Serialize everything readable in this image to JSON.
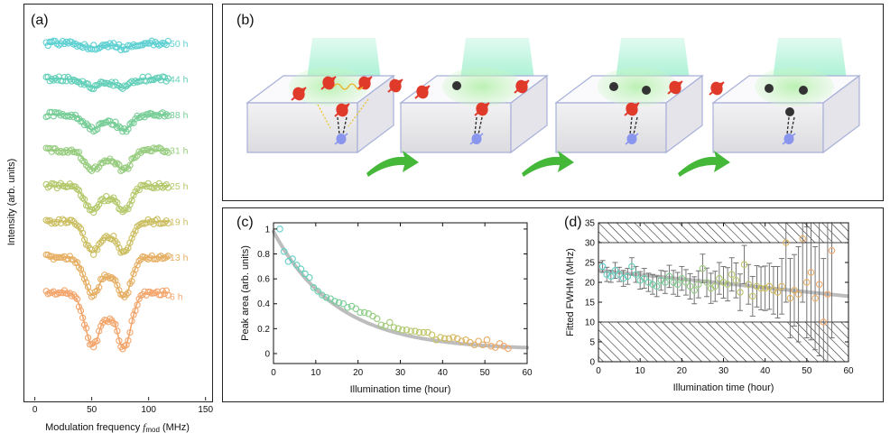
{
  "panel_labels": {
    "a": "(a)",
    "b": "(b)",
    "c": "(c)",
    "d": "(d)"
  },
  "colors": {
    "ramp": [
      "#5ed0d2",
      "#63cfb8",
      "#77cd96",
      "#97cc7f",
      "#b4c86b",
      "#ccbe62",
      "#e6ae62",
      "#f3a56c"
    ],
    "fit_curve": "#bdbdbd",
    "error_bar": "#666666",
    "electron_red": "#e03a2a",
    "nuclear_blue": "#8a96ee",
    "laser_green": "#3ee0a0",
    "arrow_green": "#45b83a"
  },
  "chart_data": [
    {
      "id": "a",
      "type": "line",
      "xlabel_prefix": "Modulation frequency",
      "xlabel_var": "f",
      "xlabel_sub": "mod",
      "xlabel_unit": "(MHz)",
      "ylabel": "Intensity (arb. units)",
      "xlim": [
        -10,
        155
      ],
      "xticks": [
        0,
        50,
        100,
        150
      ],
      "xtick_labels": [
        "0",
        "50",
        "100",
        "150"
      ],
      "x_range": [
        10,
        118
      ],
      "dip_centers_MHz": [
        51,
        78
      ],
      "series": [
        {
          "name": "6 h",
          "depth": 1.0
        },
        {
          "name": "13 h",
          "depth": 0.72
        },
        {
          "name": "19 h",
          "depth": 0.58
        },
        {
          "name": "25 h",
          "depth": 0.46
        },
        {
          "name": "31 h",
          "depth": 0.36
        },
        {
          "name": "38 h",
          "depth": 0.28
        },
        {
          "name": "44 h",
          "depth": 0.16
        },
        {
          "name": "50 h",
          "depth": 0.08
        }
      ]
    },
    {
      "id": "c",
      "type": "scatter",
      "xlabel": "Illumination time (hour)",
      "ylabel": "Peak area (arb. units)",
      "xlim": [
        0,
        60
      ],
      "ylim": [
        -0.08,
        1.05
      ],
      "xticks": [
        0,
        10,
        20,
        30,
        40,
        50,
        60
      ],
      "yticks": [
        0,
        0.2,
        0.4,
        0.6,
        0.8,
        1
      ],
      "ytick_labels": [
        "0",
        "0.2",
        "0.4",
        "0.6",
        "0.8",
        "1"
      ],
      "fit": {
        "type": "exponential",
        "amplitude": 0.95,
        "tau_hours": 15,
        "offset": 0.03
      },
      "x": [
        1.5,
        2.5,
        3.5,
        4.5,
        5.5,
        6.5,
        7.5,
        8.5,
        9.5,
        10.5,
        11.5,
        12.5,
        13.5,
        14.5,
        15.5,
        16.5,
        17.5,
        18.5,
        19.5,
        20.5,
        21.5,
        22.5,
        23.5,
        24.5,
        25.5,
        26.5,
        27.5,
        28.5,
        29.5,
        30.5,
        31.5,
        32.5,
        33.5,
        34.5,
        35.5,
        36.5,
        37.5,
        38.5,
        39.5,
        40.5,
        41.5,
        42.5,
        43.5,
        44.5,
        45.5,
        46.5,
        47.5,
        48.5,
        49.5,
        50.5,
        51.5,
        52.5,
        53.5,
        54.5,
        55.5
      ],
      "y": [
        1.0,
        0.82,
        0.74,
        0.76,
        0.71,
        0.68,
        0.64,
        0.61,
        0.53,
        0.5,
        0.47,
        0.45,
        0.44,
        0.42,
        0.41,
        0.4,
        0.37,
        0.38,
        0.36,
        0.33,
        0.33,
        0.32,
        0.3,
        0.28,
        0.23,
        0.22,
        0.25,
        0.21,
        0.2,
        0.19,
        0.19,
        0.18,
        0.18,
        0.17,
        0.17,
        0.17,
        0.15,
        0.11,
        0.13,
        0.12,
        0.12,
        0.13,
        0.12,
        0.1,
        0.11,
        0.09,
        0.07,
        0.1,
        0.07,
        0.11,
        0.06,
        0.05,
        0.08,
        0.06,
        0.04
      ]
    },
    {
      "id": "d",
      "type": "scatter",
      "xlabel": "Illumination time (hour)",
      "ylabel": "Fitted FWHM (MHz)",
      "xlim": [
        0,
        60
      ],
      "ylim": [
        0,
        35
      ],
      "xticks": [
        0,
        10,
        20,
        30,
        40,
        50,
        60
      ],
      "yticks": [
        0,
        5,
        10,
        15,
        20,
        25,
        30,
        35
      ],
      "hatched_bands": [
        [
          0,
          10
        ],
        [
          30,
          35
        ]
      ],
      "fit": {
        "type": "linear",
        "y_at_0": 23,
        "y_at_60": 16.5
      },
      "x": [
        1,
        2,
        3,
        4,
        5,
        6,
        7,
        8,
        9,
        10,
        11,
        12,
        13,
        14,
        15,
        16,
        17,
        18,
        19,
        20,
        21,
        22,
        23,
        24,
        25,
        26,
        27,
        28,
        29,
        30,
        31,
        32,
        33,
        34,
        35,
        36,
        37,
        38,
        39,
        40,
        41,
        42,
        43,
        44,
        45,
        46,
        47,
        48,
        49,
        50,
        51,
        52,
        53,
        54,
        55,
        56
      ],
      "y": [
        24.0,
        22.0,
        21.5,
        23.0,
        22.0,
        21.0,
        21.5,
        24.0,
        22.0,
        20.5,
        21.0,
        20.0,
        19.5,
        19.0,
        20.5,
        20.0,
        21.5,
        20.0,
        19.5,
        21.0,
        20.0,
        19.0,
        18.0,
        19.5,
        23.5,
        20.0,
        18.5,
        19.0,
        21.0,
        20.0,
        19.5,
        22.0,
        20.5,
        17.5,
        24.5,
        19.5,
        16.5,
        19.0,
        18.5,
        18.5,
        19.0,
        18.0,
        17.5,
        19.0,
        30.0,
        16.0,
        18.0,
        17.0,
        31.0,
        20.0,
        22.5,
        16.0,
        19.5,
        10.0,
        17.0,
        28.0
      ],
      "err": [
        1.5,
        1.8,
        1.5,
        2.0,
        1.8,
        2.0,
        2.0,
        2.2,
        2.0,
        2.2,
        2.5,
        2.3,
        2.5,
        2.6,
        2.5,
        2.8,
        2.8,
        3.0,
        3.0,
        3.0,
        3.2,
        3.2,
        3.4,
        3.4,
        3.6,
        3.6,
        3.8,
        3.8,
        4.0,
        4.0,
        4.2,
        4.2,
        4.4,
        4.6,
        4.8,
        5.0,
        5.0,
        5.2,
        5.4,
        5.6,
        5.8,
        6.0,
        6.5,
        7.0,
        15.0,
        10.0,
        9.0,
        12.0,
        16.0,
        14.0,
        17.0,
        13.0,
        18.0,
        16.0,
        20.0,
        22.0
      ]
    }
  ]
}
